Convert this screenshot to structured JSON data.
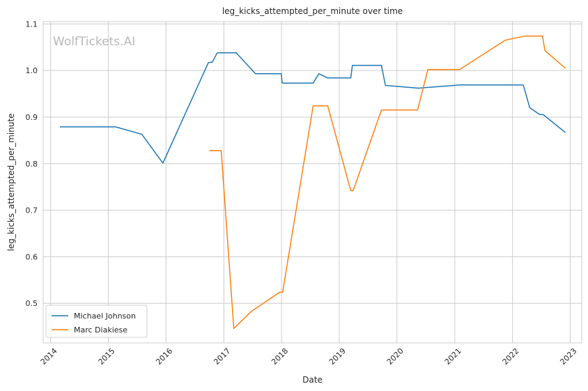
{
  "chart_data": {
    "type": "line",
    "title": "leg_kicks_attempted_per_minute over time",
    "xlabel": "Date",
    "ylabel": "leg_kicks_attempted_per_minute",
    "watermark": "WolfTickets.AI",
    "xlim": [
      "2013-11-15",
      "2023-03-15"
    ],
    "ylim": [
      0.415,
      1.105
    ],
    "x_ticks": [
      "2014",
      "2015",
      "2016",
      "2017",
      "2018",
      "2019",
      "2020",
      "2021",
      "2022",
      "2023"
    ],
    "y_ticks": [
      "0.5",
      "0.6",
      "0.7",
      "0.8",
      "0.9",
      "1.0",
      "1.1"
    ],
    "grid": true,
    "legend_position": "lower-left",
    "series": [
      {
        "name": "Michael Johnson",
        "color": "#1f77b4",
        "points": [
          [
            "2014-03-01",
            0.879
          ],
          [
            "2015-02-15",
            0.879
          ],
          [
            "2015-08-01",
            0.863
          ],
          [
            "2015-12-12",
            0.801
          ],
          [
            "2016-09-25",
            1.017
          ],
          [
            "2016-10-20",
            1.018
          ],
          [
            "2016-11-20",
            1.038
          ],
          [
            "2017-03-20",
            1.038
          ],
          [
            "2017-07-20",
            0.993
          ],
          [
            "2017-12-30",
            0.993
          ],
          [
            "2018-01-05",
            0.973
          ],
          [
            "2018-07-20",
            0.973
          ],
          [
            "2018-08-25",
            0.993
          ],
          [
            "2018-10-20",
            0.984
          ],
          [
            "2019-03-15",
            0.984
          ],
          [
            "2019-03-25",
            1.011
          ],
          [
            "2019-09-25",
            1.011
          ],
          [
            "2019-10-20",
            0.968
          ],
          [
            "2020-05-15",
            0.962
          ],
          [
            "2021-02-01",
            0.969
          ],
          [
            "2022-03-10",
            0.969
          ],
          [
            "2022-04-20",
            0.92
          ],
          [
            "2022-06-20",
            0.906
          ],
          [
            "2022-07-15",
            0.905
          ],
          [
            "2022-12-01",
            0.867
          ]
        ]
      },
      {
        "name": "Marc Diakiese",
        "color": "#ff7f0e",
        "points": [
          [
            "2016-09-30",
            0.828
          ],
          [
            "2016-12-15",
            0.828
          ],
          [
            "2017-03-05",
            0.446
          ],
          [
            "2017-06-25",
            0.483
          ],
          [
            "2017-12-20",
            0.524
          ],
          [
            "2018-01-08",
            0.524
          ],
          [
            "2018-07-20",
            0.924
          ],
          [
            "2018-10-20",
            0.924
          ],
          [
            "2019-03-15",
            0.742
          ],
          [
            "2019-03-30",
            0.742
          ],
          [
            "2019-09-25",
            0.915
          ],
          [
            "2020-05-10",
            0.915
          ],
          [
            "2020-07-15",
            1.002
          ],
          [
            "2021-02-01",
            1.002
          ],
          [
            "2021-11-15",
            1.065
          ],
          [
            "2022-03-20",
            1.074
          ],
          [
            "2022-07-10",
            1.074
          ],
          [
            "2022-07-25",
            1.043
          ],
          [
            "2022-12-01",
            1.005
          ]
        ]
      }
    ]
  }
}
